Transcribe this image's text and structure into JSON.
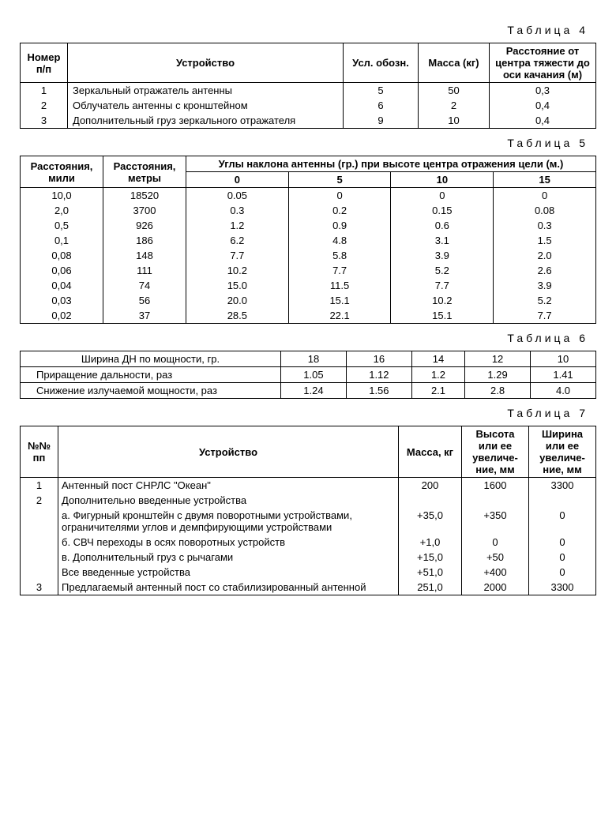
{
  "table4": {
    "caption": "Таблица 4",
    "columns": [
      "Номер п/п",
      "Устройство",
      "Усл. обозн.",
      "Масса (кг)",
      "Расстояние от центра тяжести до оси качания (м)"
    ],
    "rows": [
      [
        "1",
        "Зеркальный отражатель антенны",
        "5",
        "50",
        "0,3"
      ],
      [
        "2",
        "Облучатель антенны с кронштейном",
        "6",
        "2",
        "0,4"
      ],
      [
        "3",
        "Дополнительный груз зеркального отражателя",
        "9",
        "10",
        "0,4"
      ]
    ],
    "col_widths": [
      "60px",
      "auto",
      "90px",
      "90px",
      "130px"
    ]
  },
  "table5": {
    "caption": "Таблица 5",
    "header_main": [
      "Расстояния, мили",
      "Расстояния, метры",
      "Углы наклона антенны (гр.) при высоте центра отражения цели (м.)"
    ],
    "header_sub": [
      "0",
      "5",
      "10",
      "15"
    ],
    "rows": [
      [
        "10,0",
        "18520",
        "0.05",
        "0",
        "0",
        "0"
      ],
      [
        "2,0",
        "3700",
        "0.3",
        "0.2",
        "0.15",
        "0.08"
      ],
      [
        "0,5",
        "926",
        "1.2",
        "0.9",
        "0.6",
        "0.3"
      ],
      [
        "0,1",
        "186",
        "6.2",
        "4.8",
        "3.1",
        "1.5"
      ],
      [
        "0,08",
        "148",
        "7.7",
        "5.8",
        "3.9",
        "2.0"
      ],
      [
        "0,06",
        "111",
        "10.2",
        "7.7",
        "5.2",
        "2.6"
      ],
      [
        "0,04",
        "74",
        "15.0",
        "11.5",
        "7.7",
        "3.9"
      ],
      [
        "0,03",
        "56",
        "20.0",
        "15.1",
        "10.2",
        "5.2"
      ],
      [
        "0,02",
        "37",
        "28.5",
        "22.1",
        "15.1",
        "7.7"
      ]
    ]
  },
  "table6": {
    "caption": "Таблица 6",
    "rows": [
      [
        "Ширина ДН по мощности, гр.",
        "18",
        "16",
        "14",
        "12",
        "10"
      ],
      [
        "Приращение дальности, раз",
        "1.05",
        "1.12",
        "1.2",
        "1.29",
        "1.41"
      ],
      [
        "Снижение излучаемой мощности, раз",
        "1.24",
        "1.56",
        "2.1",
        "2.8",
        "4.0"
      ]
    ]
  },
  "table7": {
    "caption": "Таблица 7",
    "columns": [
      "№№ пп",
      "Устройство",
      "Масса, кг",
      "Высота или ее увеличе-ние, мм",
      "Ширина или ее увеличе-ние, мм"
    ],
    "rows": [
      [
        "1",
        "Антенный пост СНРЛС \"Океан\"",
        "200",
        "1600",
        "3300"
      ],
      [
        "2",
        "Дополнительно введенные устройства",
        "",
        "",
        ""
      ],
      [
        "",
        "а. Фигурный кронштейн с двумя поворотными устройствами, ограничителями углов и демпфирующими устройствами",
        "+35,0",
        "+350",
        "0"
      ],
      [
        "",
        "б. СВЧ переходы в осях поворотных устройств",
        "+1,0",
        "0",
        "0"
      ],
      [
        "",
        "в. Дополнительный груз с рычагами",
        "+15,0",
        "+50",
        "0"
      ],
      [
        "",
        "Все введенные устройства",
        "+51,0",
        "+400",
        "0"
      ],
      [
        "3",
        "Предлагаемый антенный пост со стабилизированный антенной",
        "251,0",
        "2000",
        "3300"
      ]
    ],
    "col_widths": [
      "45px",
      "auto",
      "75px",
      "80px",
      "80px"
    ]
  }
}
